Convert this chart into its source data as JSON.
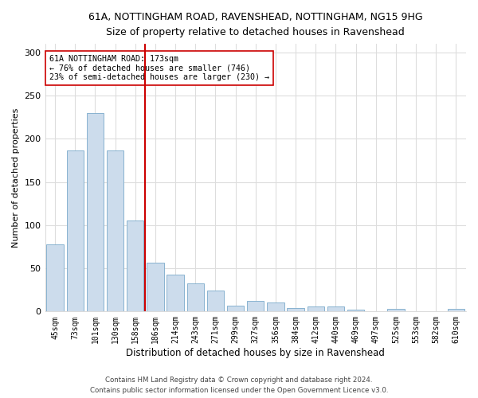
{
  "title": "61A, NOTTINGHAM ROAD, RAVENSHEAD, NOTTINGHAM, NG15 9HG",
  "subtitle": "Size of property relative to detached houses in Ravenshead",
  "xlabel": "Distribution of detached houses by size in Ravenshead",
  "ylabel": "Number of detached properties",
  "bar_color": "#ccdcec",
  "bar_edge_color": "#7aaaca",
  "categories": [
    "45sqm",
    "73sqm",
    "101sqm",
    "130sqm",
    "158sqm",
    "186sqm",
    "214sqm",
    "243sqm",
    "271sqm",
    "299sqm",
    "327sqm",
    "356sqm",
    "384sqm",
    "412sqm",
    "440sqm",
    "469sqm",
    "497sqm",
    "525sqm",
    "553sqm",
    "582sqm",
    "610sqm"
  ],
  "values": [
    78,
    187,
    230,
    187,
    105,
    57,
    43,
    33,
    24,
    7,
    12,
    10,
    4,
    6,
    6,
    2,
    0,
    3,
    0,
    0,
    3
  ],
  "vline_x": 5,
  "vline_color": "#cc0000",
  "annotation_text": "61A NOTTINGHAM ROAD: 173sqm\n← 76% of detached houses are smaller (746)\n23% of semi-detached houses are larger (230) →",
  "annotation_box_color": "#ffffff",
  "annotation_box_edge": "#cc0000",
  "ylim": [
    0,
    310
  ],
  "yticks": [
    0,
    50,
    100,
    150,
    200,
    250,
    300
  ],
  "footer_line1": "Contains HM Land Registry data © Crown copyright and database right 2024.",
  "footer_line2": "Contains public sector information licensed under the Open Government Licence v3.0.",
  "background_color": "#ffffff",
  "plot_background": "#ffffff",
  "grid_color": "#dddddd"
}
